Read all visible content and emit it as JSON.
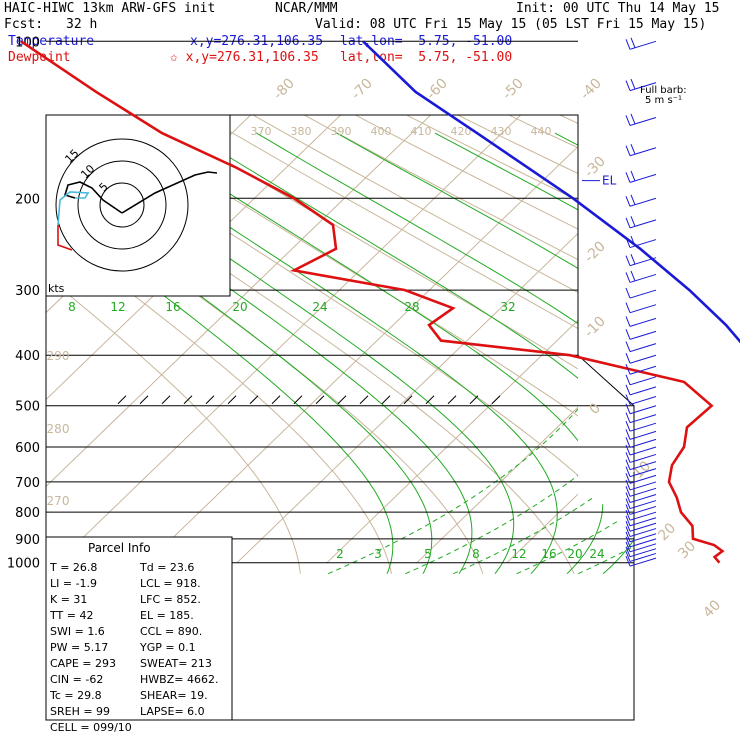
{
  "header": {
    "model": "HAIC-HIWC 13km ARW-GFS init",
    "org": "NCAR/MMM",
    "init": "Init: 00 UTC Thu 14 May 15",
    "fcst_label": "Fcst:",
    "fcst_value": "32 h",
    "valid": "Valid: 08 UTC Fri 15 May 15 (05 LST Fri 15 May 15)",
    "temp_label": "Temperature",
    "temp_xy": "x,y=276.31,106.35",
    "temp_latlon": "lat,lon=  5.75, -51.00",
    "dew_label": "Dewpoint",
    "dew_xy": "✩ x,y=276.31,106.35",
    "dew_latlon": "lat,lon=  5.75, -51.00"
  },
  "barb_legend": {
    "line1": "Full barb:",
    "line2": "5 m s⁻¹"
  },
  "colors": {
    "temperature": "#1a1ad6",
    "dewpoint": "#dd1111",
    "isotherm": "#c9b79c",
    "dry_adiabat": "#c9b79c",
    "moist_adiabat": "#22aa22",
    "mixing_ratio": "#22aa22",
    "wind_barb": "#1a1ad6",
    "wind_barb_upper": "#22aa22",
    "theta_e_label": "#c9b79c"
  },
  "chart_data": {
    "type": "skew-T log-P sounding",
    "pressure_axis": {
      "ticks": [
        100,
        200,
        300,
        400,
        500,
        600,
        700,
        800,
        900,
        1000
      ],
      "scale": "log",
      "range": [
        100,
        1000
      ]
    },
    "isotherm_labels": [
      "-80",
      "-70",
      "-60",
      "-50",
      "-40",
      "-30",
      "-20",
      "-10",
      "0",
      "10",
      "20",
      "30",
      "40"
    ],
    "theta_e_labels": [
      "370",
      "380",
      "390",
      "400",
      "410",
      "420",
      "430",
      "440"
    ],
    "dry_adiabat_labels": [
      "290",
      "280",
      "270"
    ],
    "moist_adiabat_labels": [
      "8",
      "12",
      "16",
      "20",
      "24",
      "28",
      "32"
    ],
    "mixing_ratio_labels": [
      "2",
      "3",
      "5",
      "8",
      "12",
      "16",
      "20",
      "24"
    ],
    "kts_label": "kts",
    "levels": [
      {
        "name": "EL",
        "p": 185
      },
      {
        "name": "LFC",
        "p": 852
      },
      {
        "name": "CCL",
        "p": 890
      },
      {
        "name": "LCL",
        "p": 918
      }
    ],
    "parcel_marker": {
      "label": "M",
      "p": 500
    },
    "temperature": [
      {
        "p": 1000,
        "t": 26.8
      },
      {
        "p": 975,
        "t": 24.8
      },
      {
        "p": 950,
        "t": 23.2
      },
      {
        "p": 925,
        "t": 21.8
      },
      {
        "p": 900,
        "t": 20.4
      },
      {
        "p": 850,
        "t": 18.2
      },
      {
        "p": 800,
        "t": 16.0
      },
      {
        "p": 750,
        "t": 13.4
      },
      {
        "p": 700,
        "t": 10.4
      },
      {
        "p": 650,
        "t": 7.4
      },
      {
        "p": 600,
        "t": 4.2
      },
      {
        "p": 550,
        "t": 1.0
      },
      {
        "p": 500,
        "t": -3.2
      },
      {
        "p": 450,
        "t": -7.6
      },
      {
        "p": 400,
        "t": -12.8
      },
      {
        "p": 350,
        "t": -19.0
      },
      {
        "p": 300,
        "t": -26.4
      },
      {
        "p": 250,
        "t": -35.2
      },
      {
        "p": 200,
        "t": -46.0
      },
      {
        "p": 150,
        "t": -60.0
      },
      {
        "p": 125,
        "t": -68.5
      },
      {
        "p": 100,
        "t": -76.0
      }
    ],
    "dewpoint": [
      {
        "p": 1000,
        "t": 23.6
      },
      {
        "p": 975,
        "t": 21.4
      },
      {
        "p": 950,
        "t": 20.6
      },
      {
        "p": 925,
        "t": 18.0
      },
      {
        "p": 900,
        "t": 14.0
      },
      {
        "p": 850,
        "t": 10.6
      },
      {
        "p": 800,
        "t": 6.0
      },
      {
        "p": 750,
        "t": 2.2
      },
      {
        "p": 700,
        "t": -2.0
      },
      {
        "p": 650,
        "t": -5.0
      },
      {
        "p": 600,
        "t": -7.0
      },
      {
        "p": 550,
        "t": -10.0
      },
      {
        "p": 500,
        "t": -10.6
      },
      {
        "p": 450,
        "t": -17.0
      },
      {
        "p": 400,
        "t": -33.0
      },
      {
        "p": 375,
        "t": -49.0
      },
      {
        "p": 350,
        "t": -52.0
      },
      {
        "p": 325,
        "t": -51.0
      },
      {
        "p": 300,
        "t": -58.0
      },
      {
        "p": 275,
        "t": -72.0
      },
      {
        "p": 250,
        "t": -69.0
      },
      {
        "p": 225,
        "t": -71.0
      },
      {
        "p": 200,
        "t": -77.0
      },
      {
        "p": 175,
        "t": -85.0
      },
      {
        "p": 150,
        "t": -95.0
      },
      {
        "p": 125,
        "t": -104.0
      },
      {
        "p": 100,
        "t": -114.0
      }
    ]
  },
  "hodograph": {
    "ring_labels": [
      "5",
      "10",
      "15"
    ],
    "kts_label": "kts"
  },
  "parcel_info": {
    "title": "Parcel Info",
    "rows": [
      [
        "T   =   26.8",
        "Td  =  23.6"
      ],
      [
        "LI  =   -1.9",
        "LCL =  918."
      ],
      [
        "K   =     31",
        "LFC =  852."
      ],
      [
        "TT  =     42",
        "EL  =  185."
      ],
      [
        "SWI =    1.6",
        "CCL =  890."
      ],
      [
        "PW  =   5.17",
        "YGP =   0.1"
      ],
      [
        "CAPE =   293",
        "SWEAT=  213"
      ],
      [
        "CIN  =   -62",
        "HWBZ= 4662."
      ],
      [
        "Tc  =   29.8",
        "SHEAR=  19."
      ],
      [
        "SREH =    99",
        "LAPSE=  6.0"
      ],
      [
        "CELL = 099/10",
        ""
      ]
    ]
  }
}
